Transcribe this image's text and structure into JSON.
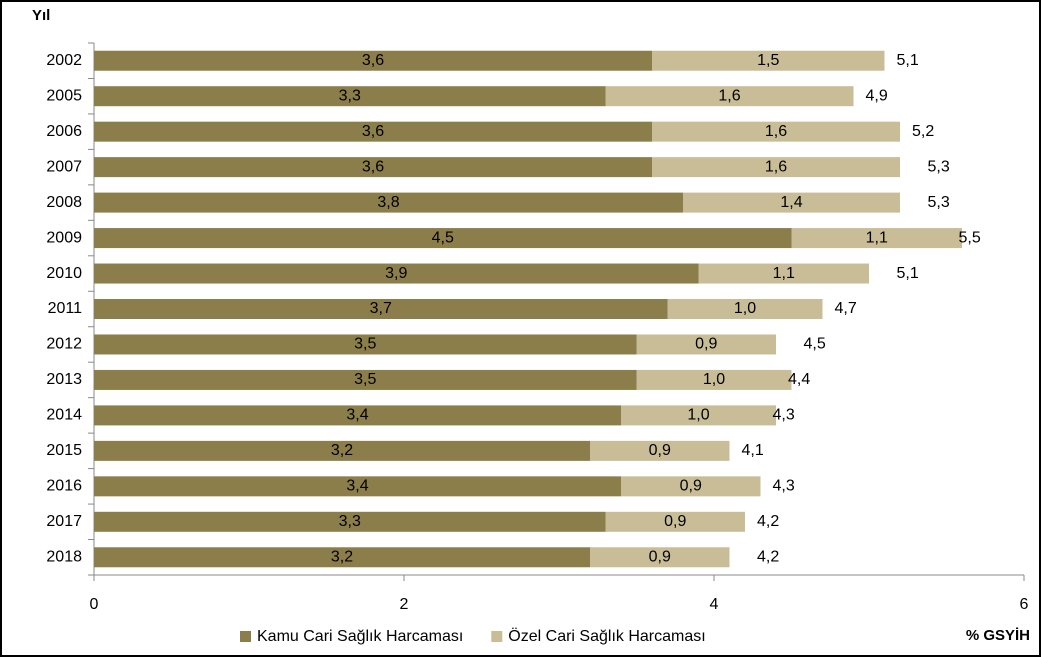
{
  "chart_data": {
    "type": "bar",
    "orientation": "horizontal",
    "stacked": true,
    "ylabel": "Yıl",
    "xlabel": "% GSYİH",
    "categories": [
      "2002",
      "2005",
      "2006",
      "2007",
      "2008",
      "2009",
      "2010",
      "2011",
      "2012",
      "2013",
      "2014",
      "2015",
      "2016",
      "2017",
      "2018"
    ],
    "series": [
      {
        "name": "Kamu Cari Sağlık Harcaması",
        "color": "#8c7e4b",
        "values": [
          3.6,
          3.3,
          3.6,
          3.6,
          3.8,
          4.5,
          3.9,
          3.7,
          3.5,
          3.5,
          3.4,
          3.2,
          3.4,
          3.3,
          3.2
        ],
        "value_labels": [
          "3,6",
          "3,3",
          "3,6",
          "3,6",
          "3,8",
          "4,5",
          "3,9",
          "3,7",
          "3,5",
          "3,5",
          "3,4",
          "3,2",
          "3,4",
          "3,3",
          "3,2"
        ]
      },
      {
        "name": "Özel Cari Sağlık Harcaması",
        "color": "#c9bd97",
        "values": [
          1.5,
          1.6,
          1.6,
          1.6,
          1.4,
          1.1,
          1.1,
          1.0,
          0.9,
          1.0,
          1.0,
          0.9,
          0.9,
          0.9,
          0.9
        ],
        "value_labels": [
          "1,5",
          "1,6",
          "1,6",
          "1,6",
          "1,4",
          "1,1",
          "1,1",
          "1,0",
          "0,9",
          "1,0",
          "1,0",
          "0,9",
          "0,9",
          "0,9",
          "0,9"
        ]
      }
    ],
    "totals": [
      5.1,
      4.9,
      5.2,
      5.3,
      5.3,
      5.5,
      5.1,
      4.7,
      4.5,
      4.4,
      4.3,
      4.1,
      4.3,
      4.2,
      4.2
    ],
    "total_labels": [
      "5,1",
      "4,9",
      "5,2",
      "5,3",
      "5,3",
      "5,5",
      "5,1",
      "4,7",
      "4,5",
      "4,4",
      "4,3",
      "4,1",
      "4,3",
      "4,2",
      "4,2"
    ],
    "xlim": [
      0,
      6
    ],
    "xticks": [
      0,
      2,
      4,
      6
    ],
    "legend": "bottom"
  }
}
